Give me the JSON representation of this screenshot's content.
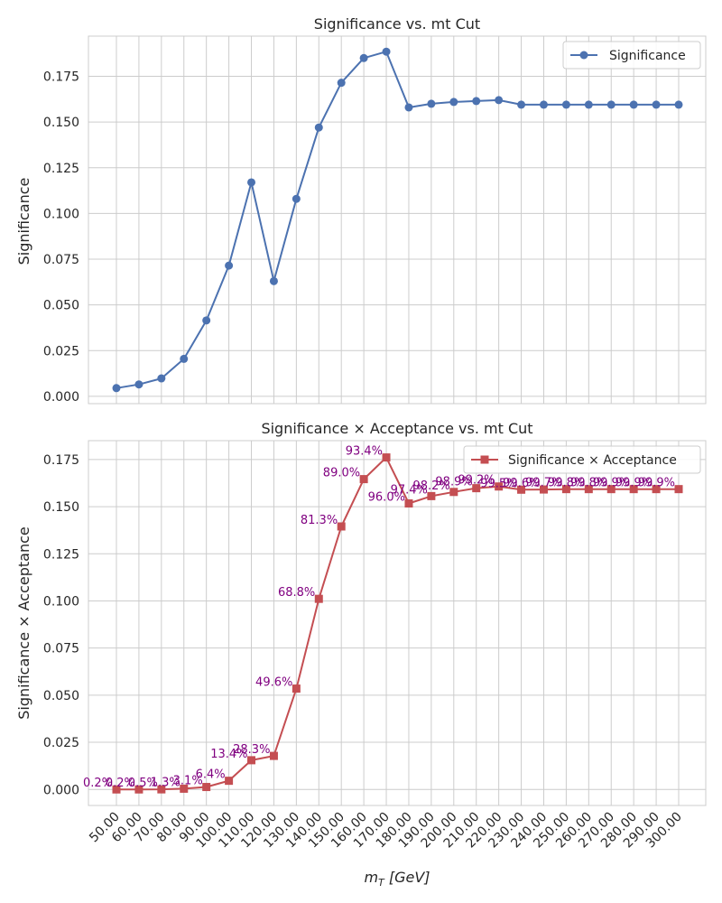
{
  "chart_data": [
    {
      "type": "line",
      "title": "Significance vs. mt Cut",
      "xlabel": "",
      "ylabel": "Significance",
      "x": [
        50,
        60,
        70,
        80,
        90,
        100,
        110,
        120,
        130,
        140,
        150,
        160,
        170,
        180,
        190,
        200,
        210,
        220,
        230,
        240,
        250,
        260,
        270,
        280,
        290,
        300
      ],
      "series": [
        {
          "name": "Significance",
          "color": "#4c72b0",
          "marker": "circle",
          "values": [
            0.0045,
            0.0065,
            0.0098,
            0.0205,
            0.0415,
            0.0715,
            0.117,
            0.063,
            0.108,
            0.147,
            0.1715,
            0.185,
            0.1885,
            0.158,
            0.16,
            0.161,
            0.1615,
            0.162,
            0.1595,
            0.1595,
            0.1595,
            0.1595,
            0.1595,
            0.1595,
            0.1595,
            0.1595
          ]
        }
      ],
      "yticks": [
        "0.000",
        "0.025",
        "0.050",
        "0.075",
        "0.100",
        "0.125",
        "0.150",
        "0.175"
      ],
      "ylim": [
        -0.004,
        0.197
      ],
      "grid": true,
      "legend": "top-right"
    },
    {
      "type": "line",
      "title": "Significance × Acceptance vs. mt Cut",
      "xlabel": "m_T [GeV]",
      "xlabel_main": "m",
      "xlabel_sub": "T",
      "xlabel_unit": " [GeV]",
      "ylabel": "Significance × Acceptance",
      "x": [
        50,
        60,
        70,
        80,
        90,
        100,
        110,
        120,
        130,
        140,
        150,
        160,
        170,
        180,
        190,
        200,
        210,
        220,
        230,
        240,
        250,
        260,
        270,
        280,
        290,
        300
      ],
      "xtick_labels": [
        "50.00",
        "60.00",
        "70.00",
        "80.00",
        "90.00",
        "100.00",
        "110.00",
        "120.00",
        "130.00",
        "140.00",
        "150.00",
        "160.00",
        "170.00",
        "180.00",
        "190.00",
        "200.00",
        "210.00",
        "220.00",
        "230.00",
        "240.00",
        "250.00",
        "260.00",
        "270.00",
        "280.00",
        "290.00",
        "300.00"
      ],
      "series": [
        {
          "name": "Significance × Acceptance",
          "color": "#c44e52",
          "marker": "square",
          "values": [
            1e-05,
            1e-05,
            5e-05,
            0.0004,
            0.0013,
            0.0046,
            0.0155,
            0.0178,
            0.0535,
            0.1011,
            0.1395,
            0.1646,
            0.1761,
            0.1517,
            0.1556,
            0.1578,
            0.1598,
            0.1607,
            0.159,
            0.1591,
            0.1593,
            0.1593,
            0.1593,
            0.1593,
            0.1593,
            0.1593
          ]
        }
      ],
      "annotations": [
        "0.2%",
        "0.2%",
        "0.5%",
        "1.3%",
        "3.1%",
        "6.4%",
        "13.4%",
        "28.3%",
        "49.6%",
        "68.8%",
        "81.3%",
        "89.0%",
        "93.4%",
        "96.0%",
        "97.4%",
        "98.2%",
        "98.9%",
        "99.2%",
        "99.5%",
        "99.6%",
        "99.7%",
        "99.8%",
        "99.8%",
        "99.9%",
        "99.9%",
        "99.9%"
      ],
      "yticks": [
        "0.000",
        "0.025",
        "0.050",
        "0.075",
        "0.100",
        "0.125",
        "0.150",
        "0.175"
      ],
      "ylim": [
        -0.0085,
        0.185
      ],
      "grid": true,
      "legend": "top-right"
    }
  ]
}
